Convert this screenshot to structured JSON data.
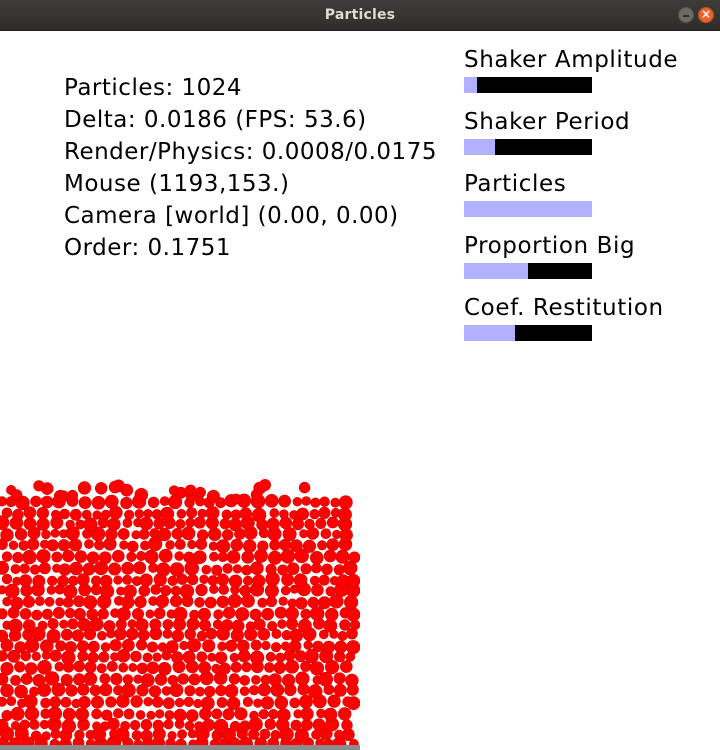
{
  "window": {
    "title": "Particles",
    "close_symbol": "×"
  },
  "stats": [
    "Particles: 1024",
    "Delta: 0.0186 (FPS: 53.6)",
    "Render/Physics: 0.0008/0.0175",
    "Mouse (1193,153.)",
    "Camera [world] (0.00, 0.00)",
    "Order: 0.1751"
  ],
  "sliders": [
    {
      "label": "Shaker Amplitude",
      "fraction": 0.1
    },
    {
      "label": "Shaker Period",
      "fraction": 0.24
    },
    {
      "label": "Particles",
      "fraction": 1.0
    },
    {
      "label": "Proportion Big",
      "fraction": 0.5
    },
    {
      "label": "Coef. Restitution",
      "fraction": 0.4
    }
  ],
  "colors": {
    "particle": "#ff0000",
    "particle_edge": "#d40000",
    "slider_fill": "#b0b0ff",
    "slider_track": "#000000"
  }
}
